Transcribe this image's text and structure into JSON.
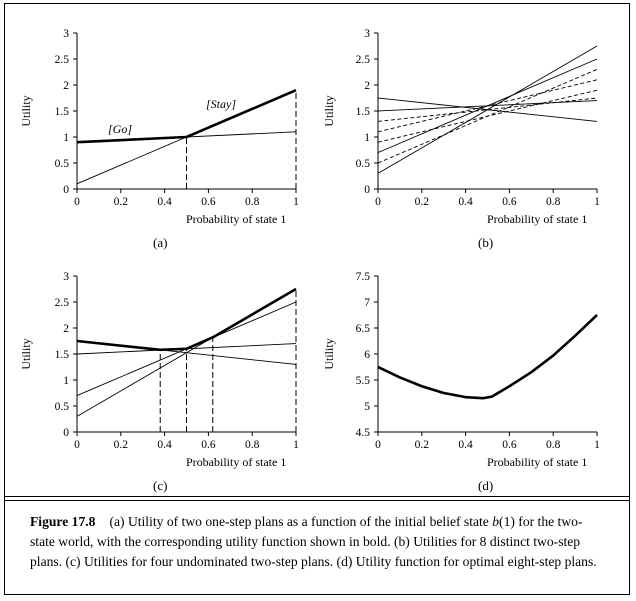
{
  "figure": {
    "label": "Figure 17.8",
    "caption_parts": [
      {
        "t": "(a) Utility of two one-step plans as a function of the initial belief state "
      },
      {
        "t": "b",
        "i": true
      },
      {
        "t": "(1) for the two-state world, with the corresponding utility function shown in bold. (b) Utilities for 8 distinct two-step plans. (c) Utilities for four undominated two-step plans. (d) Utility function for optimal eight-step plans."
      }
    ]
  },
  "chart_data": [
    {
      "id": "a",
      "type": "line",
      "panel_label": "(a)",
      "xlabel": "Probability of state 1",
      "ylabel": "Utility",
      "xlim": [
        0,
        1
      ],
      "ylim": [
        0,
        3
      ],
      "xticks": [
        "0",
        "0.2",
        "0.4",
        "0.6",
        "0.8",
        "1"
      ],
      "yticks": [
        "0",
        "0.5",
        "1",
        "1.5",
        "2",
        "2.5",
        "3"
      ],
      "series": [
        {
          "name": "[Go]",
          "style": "thin",
          "x": [
            0,
            1
          ],
          "y": [
            0.9,
            1.1
          ]
        },
        {
          "name": "[Stay]",
          "style": "thin",
          "x": [
            0,
            1
          ],
          "y": [
            0.1,
            1.9
          ]
        },
        {
          "style": "bold",
          "x": [
            0,
            0.5,
            1
          ],
          "y": [
            0.9,
            1.0,
            1.9
          ]
        }
      ],
      "vlines": [
        0.5,
        1
      ]
    },
    {
      "id": "b",
      "type": "line",
      "panel_label": "(b)",
      "xlabel": "Probability of state 1",
      "ylabel": "Utility",
      "xlim": [
        0,
        1
      ],
      "ylim": [
        0,
        3
      ],
      "xticks": [
        "0",
        "0.2",
        "0.4",
        "0.6",
        "0.8",
        "1"
      ],
      "yticks": [
        "0",
        "0.5",
        "1",
        "1.5",
        "2",
        "2.5",
        "3"
      ],
      "series": [
        {
          "style": "solid",
          "x": [
            0,
            1
          ],
          "y": [
            1.75,
            1.3
          ]
        },
        {
          "style": "solid",
          "x": [
            0,
            1
          ],
          "y": [
            1.5,
            1.7
          ]
        },
        {
          "style": "solid",
          "x": [
            0,
            1
          ],
          "y": [
            0.7,
            2.5
          ]
        },
        {
          "style": "solid",
          "x": [
            0,
            1
          ],
          "y": [
            0.3,
            2.75
          ]
        },
        {
          "style": "dashed",
          "x": [
            0,
            1
          ],
          "y": [
            1.3,
            1.75
          ]
        },
        {
          "style": "dashed",
          "x": [
            0,
            1
          ],
          "y": [
            1.1,
            2.1
          ]
        },
        {
          "style": "dashed",
          "x": [
            0,
            1
          ],
          "y": [
            0.5,
            2.3
          ]
        },
        {
          "style": "dashed",
          "x": [
            0,
            1
          ],
          "y": [
            0.9,
            1.9
          ]
        }
      ]
    },
    {
      "id": "c",
      "type": "line",
      "panel_label": "(c)",
      "xlabel": "Probability of state 1",
      "ylabel": "Utility",
      "xlim": [
        0,
        1
      ],
      "ylim": [
        0,
        3
      ],
      "xticks": [
        "0",
        "0.2",
        "0.4",
        "0.6",
        "0.8",
        "1"
      ],
      "yticks": [
        "0",
        "0.5",
        "1",
        "1.5",
        "2",
        "2.5",
        "3"
      ],
      "series": [
        {
          "style": "thin",
          "x": [
            0,
            1
          ],
          "y": [
            1.75,
            1.3
          ]
        },
        {
          "style": "thin",
          "x": [
            0,
            1
          ],
          "y": [
            1.5,
            1.7
          ]
        },
        {
          "style": "thin",
          "x": [
            0,
            1
          ],
          "y": [
            0.7,
            2.5
          ]
        },
        {
          "style": "thin",
          "x": [
            0,
            1
          ],
          "y": [
            0.3,
            2.75
          ]
        },
        {
          "style": "bold",
          "x": [
            0,
            0.38,
            0.5,
            0.62,
            1
          ],
          "y": [
            1.75,
            1.58,
            1.6,
            1.82,
            2.75
          ]
        }
      ],
      "vlines": [
        0.38,
        0.5,
        0.62,
        1
      ]
    },
    {
      "id": "d",
      "type": "line",
      "panel_label": "(d)",
      "xlabel": "Probability of state 1",
      "ylabel": "Utility",
      "xlim": [
        0,
        1
      ],
      "ylim": [
        4.5,
        7.5
      ],
      "xticks": [
        "0",
        "0.2",
        "0.4",
        "0.6",
        "0.8",
        "1"
      ],
      "yticks": [
        "4.5",
        "5",
        "5.5",
        "6",
        "6.5",
        "7",
        "7.5"
      ],
      "series": [
        {
          "style": "bold",
          "x": [
            0,
            0.1,
            0.2,
            0.3,
            0.4,
            0.48,
            0.52,
            0.6,
            0.7,
            0.8,
            0.9,
            1
          ],
          "y": [
            5.75,
            5.55,
            5.38,
            5.25,
            5.17,
            5.15,
            5.18,
            5.38,
            5.65,
            5.97,
            6.35,
            6.75
          ]
        }
      ]
    }
  ]
}
